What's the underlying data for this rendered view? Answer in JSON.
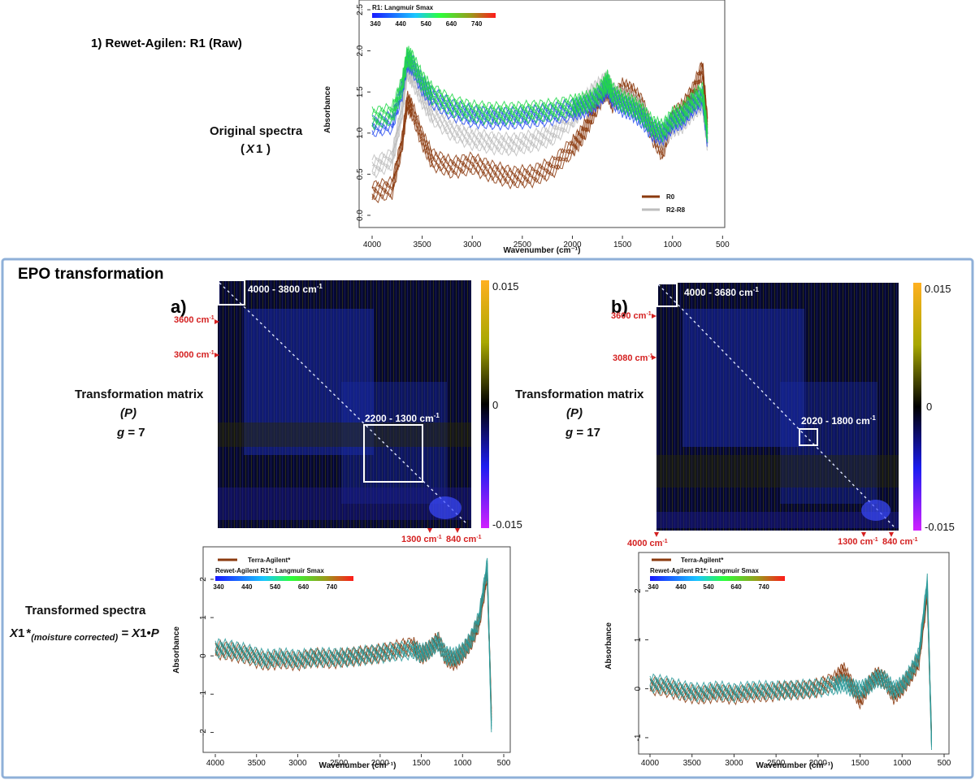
{
  "header": {
    "title": "1) Rewet-Agilen: R1 (Raw)",
    "original_label": "Original spectra",
    "original_sub_var": "X",
    "original_sub_num": "1"
  },
  "epo": {
    "title": "EPO transformation",
    "panel_a": {
      "letter": "a)",
      "side_title": "Transformation matrix",
      "side_var": "(P)",
      "g_prefix": "g",
      "g_value": "= 7",
      "box1": "4000 - 3800 cm",
      "box2": "2200 - 1300 cm",
      "left_marks": [
        "3600 cm",
        "3000 cm"
      ],
      "bottom_marks": [
        "1300 cm",
        "840 cm"
      ]
    },
    "panel_b": {
      "letter": "b)",
      "side_title": "Transformation matrix",
      "side_var": "(P)",
      "g_prefix": "g",
      "g_value": "= 17",
      "box1": "4000 - 3680 cm",
      "box2": "2020 - 1800 cm",
      "left_marks": [
        "3600 cm",
        "3080 cm"
      ],
      "bottom_marks": [
        "4000 cm",
        "1300 cm",
        "840 cm"
      ]
    },
    "colorbar_ticks": [
      "0.015",
      "0",
      "-0.015"
    ],
    "inv_cm_sup": "-1",
    "transformed_label": "Transformed spectra",
    "transformed_formula": {
      "x": "X",
      "one": "1",
      "star": "*",
      "sub": "(moisture corrected)",
      "eq": "= ",
      "x2": "X",
      "one2": "1",
      "dot": "•",
      "p": "P"
    }
  },
  "colors": {
    "brown": "#8B3A0E",
    "gray": "#bdbdbd",
    "panel_border": "#8fb0d8",
    "matrix_bg": "#05082e",
    "matrix_blue": "#1d2ad8",
    "red_label": "#d42020"
  },
  "chart_data": [
    {
      "type": "line",
      "id": "original",
      "xlabel": "Wavenumber (cm⁻¹)",
      "ylabel": "Absorbance",
      "xlim": [
        4000,
        600
      ],
      "ylim": [
        0,
        2.5
      ],
      "xticks": [
        4000,
        3500,
        3000,
        2500,
        2000,
        1500,
        1000,
        500
      ],
      "yticks": [
        "0.0",
        "0.5",
        "1.0",
        "1.5",
        "2.0",
        "2.5"
      ],
      "colorbar_title": "R1: Langmuir Smax",
      "colorbar_ticks": [
        "340",
        "440",
        "540",
        "640",
        "740"
      ],
      "legend": [
        "R0",
        "R2-R8"
      ],
      "series": [
        {
          "name": "R0",
          "color": "#8B3A0E",
          "x": [
            4000,
            3800,
            3700,
            3650,
            3600,
            3500,
            3400,
            3200,
            3000,
            2800,
            2600,
            2400,
            2200,
            2000,
            1900,
            1800,
            1700,
            1650,
            1600,
            1500,
            1400,
            1300,
            1200,
            1100,
            1000,
            900,
            800,
            700,
            650
          ],
          "y": [
            0.3,
            0.35,
            0.9,
            1.4,
            1.3,
            0.95,
            0.7,
            0.6,
            0.65,
            0.55,
            0.48,
            0.5,
            0.6,
            0.85,
            1.0,
            1.25,
            1.5,
            1.55,
            1.4,
            1.55,
            1.5,
            1.35,
            1.0,
            0.8,
            1.2,
            1.3,
            1.5,
            1.8,
            1.1
          ]
        },
        {
          "name": "R2-R8",
          "color": "#bdbdbd",
          "x": [
            4000,
            3800,
            3700,
            3650,
            3600,
            3500,
            3400,
            3200,
            3000,
            2800,
            2600,
            2400,
            2200,
            2000,
            1900,
            1800,
            1700,
            1650,
            1600,
            1500,
            1400,
            1300,
            1200,
            1100,
            1000,
            900,
            800,
            700,
            650
          ],
          "y": [
            0.6,
            0.7,
            1.3,
            1.8,
            1.7,
            1.45,
            1.25,
            1.05,
            0.95,
            0.9,
            0.88,
            0.92,
            1.0,
            1.2,
            1.35,
            1.5,
            1.6,
            1.65,
            1.5,
            1.45,
            1.4,
            1.3,
            1.05,
            0.95,
            1.1,
            1.15,
            1.3,
            1.4,
            0.9
          ]
        },
        {
          "name": "",
          "color": "#2a4ff0",
          "x": [
            4000,
            3800,
            3700,
            3650,
            3600,
            3500,
            3400,
            3200,
            3000,
            2800,
            2600,
            2400,
            2200,
            2000,
            1900,
            1800,
            1700,
            1650,
            1600,
            1500,
            1400,
            1300,
            1200,
            1100,
            1000,
            900,
            800,
            700,
            650
          ],
          "y": [
            1.1,
            1.15,
            1.55,
            1.9,
            1.85,
            1.6,
            1.45,
            1.3,
            1.22,
            1.2,
            1.2,
            1.22,
            1.25,
            1.3,
            1.33,
            1.38,
            1.5,
            1.6,
            1.45,
            1.35,
            1.3,
            1.2,
            1.05,
            1.0,
            1.15,
            1.2,
            1.35,
            1.45,
            0.95
          ]
        },
        {
          "name": "",
          "color": "#22d84a",
          "x": [
            4000,
            3800,
            3700,
            3650,
            3600,
            3500,
            3400,
            3200,
            3000,
            2800,
            2600,
            2400,
            2200,
            2000,
            1900,
            1800,
            1700,
            1650,
            1600,
            1500,
            1400,
            1300,
            1200,
            1100,
            1000,
            900,
            800,
            700,
            650
          ],
          "y": [
            1.2,
            1.25,
            1.6,
            1.95,
            1.9,
            1.65,
            1.5,
            1.35,
            1.28,
            1.26,
            1.26,
            1.28,
            1.3,
            1.35,
            1.38,
            1.42,
            1.55,
            1.65,
            1.5,
            1.4,
            1.35,
            1.25,
            1.1,
            1.05,
            1.2,
            1.25,
            1.4,
            1.5,
            1.0
          ]
        }
      ]
    },
    {
      "type": "heatmap",
      "id": "matrix_a",
      "range": [
        4000,
        600
      ],
      "color_range": [
        -0.015,
        0.015
      ]
    },
    {
      "type": "heatmap",
      "id": "matrix_b",
      "range": [
        4000,
        600
      ],
      "color_range": [
        -0.015,
        0.015
      ]
    },
    {
      "type": "line",
      "id": "transformed_a",
      "xlabel": "Wavenumber (cm⁻¹)",
      "ylabel": "Absorbance",
      "xlim": [
        4000,
        500
      ],
      "ylim": [
        -2.5,
        2.7
      ],
      "xticks": [
        4000,
        3500,
        3000,
        2500,
        2000,
        1500,
        1000,
        500
      ],
      "yticks": [
        "-2",
        "-1",
        "0",
        "1",
        "2"
      ],
      "legend_brown": "Terra-Agilent*",
      "colorbar_title": "Rewet-Agilent R1*: Langmuir Smax",
      "colorbar_ticks": [
        "340",
        "440",
        "540",
        "640",
        "740"
      ],
      "series": [
        {
          "name": "Terra-Agilent*",
          "color": "#8B3A0E",
          "x": [
            4000,
            3800,
            3600,
            3400,
            3200,
            3000,
            2800,
            2600,
            2400,
            2200,
            2000,
            1800,
            1600,
            1500,
            1400,
            1300,
            1200,
            1100,
            1000,
            900,
            800,
            700,
            650
          ],
          "y": [
            0.2,
            0.15,
            0.05,
            -0.1,
            -0.05,
            -0.1,
            0.0,
            -0.05,
            0.0,
            0.05,
            0.1,
            0.2,
            0.3,
            0.05,
            0.2,
            0.45,
            0.0,
            -0.1,
            0.1,
            0.4,
            0.9,
            2.2,
            -1.5
          ]
        },
        {
          "name": "",
          "color": "#2a9a9a",
          "x": [
            4000,
            3800,
            3600,
            3400,
            3200,
            3000,
            2800,
            2600,
            2400,
            2200,
            2000,
            1800,
            1600,
            1500,
            1400,
            1300,
            1200,
            1100,
            1000,
            900,
            800,
            700,
            650
          ],
          "y": [
            0.25,
            0.2,
            0.1,
            -0.05,
            0.0,
            -0.05,
            0.0,
            0.0,
            0.0,
            0.05,
            0.1,
            0.15,
            0.2,
            0.1,
            0.2,
            0.4,
            0.05,
            0.0,
            0.15,
            0.45,
            1.0,
            2.4,
            -1.8
          ]
        }
      ]
    },
    {
      "type": "line",
      "id": "transformed_b",
      "xlabel": "Wavenumber (cm⁻¹)",
      "ylabel": "Absorbance",
      "xlim": [
        4000,
        500
      ],
      "ylim": [
        -1.3,
        2.7
      ],
      "xticks": [
        4000,
        3500,
        3000,
        2500,
        2000,
        1500,
        1000,
        500
      ],
      "yticks": [
        "-1",
        "0",
        "1",
        "2"
      ],
      "legend_brown": "Terra-Agilent*",
      "colorbar_title": "Rewet-Agilent R1*: Langmuir Smax",
      "colorbar_ticks": [
        "340",
        "440",
        "540",
        "640",
        "740"
      ],
      "series": [
        {
          "name": "Terra-Agilent*",
          "color": "#8B3A0E",
          "x": [
            4000,
            3800,
            3600,
            3400,
            3200,
            3000,
            2800,
            2600,
            2400,
            2200,
            2000,
            1800,
            1700,
            1600,
            1500,
            1400,
            1300,
            1200,
            1100,
            1000,
            900,
            800,
            700,
            650
          ],
          "y": [
            0.1,
            0.05,
            -0.05,
            -0.1,
            -0.05,
            -0.1,
            -0.05,
            -0.05,
            0.0,
            0.0,
            0.05,
            0.2,
            0.4,
            0.1,
            -0.2,
            0.1,
            0.3,
            0.2,
            -0.1,
            0.05,
            0.3,
            0.6,
            2.0,
            -1.0
          ]
        },
        {
          "name": "",
          "color": "#2a9a9a",
          "x": [
            4000,
            3800,
            3600,
            3400,
            3200,
            3000,
            2800,
            2600,
            2400,
            2200,
            2000,
            1800,
            1700,
            1600,
            1500,
            1400,
            1300,
            1200,
            1100,
            1000,
            900,
            800,
            700,
            650
          ],
          "y": [
            0.15,
            0.1,
            0.0,
            -0.05,
            0.0,
            -0.05,
            0.0,
            0.0,
            0.0,
            0.02,
            0.05,
            0.1,
            0.15,
            0.05,
            0.0,
            0.1,
            0.25,
            0.2,
            0.0,
            0.1,
            0.35,
            0.7,
            2.2,
            -1.1
          ]
        }
      ]
    }
  ]
}
